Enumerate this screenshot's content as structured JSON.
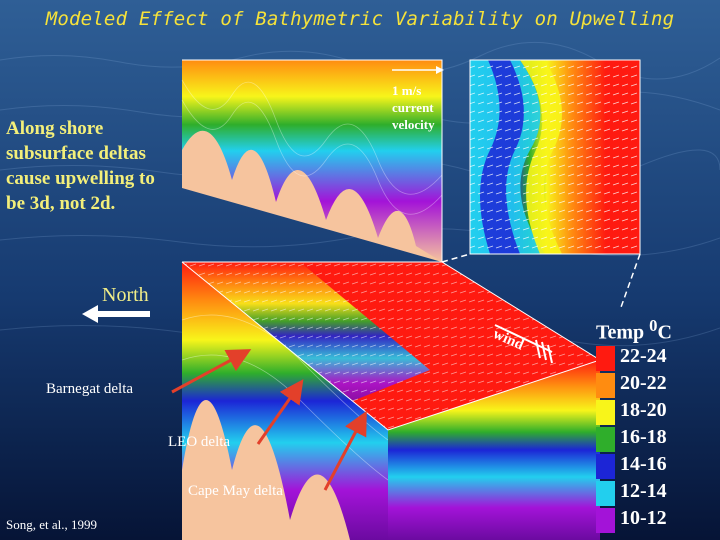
{
  "title": "Modeled Effect of Bathymetric Variability on Upwelling",
  "statement": "Along shore subsurface deltas cause upwelling to be 3d, not 2d.",
  "current_scale": {
    "label": "1 m/s current velocity"
  },
  "north_label": "North",
  "wind_label": "wind",
  "deltas": [
    "Barnegat delta",
    "LEO delta",
    "Cape May delta"
  ],
  "citation": "Song, et al., 1999",
  "legend": {
    "title": "Temp °C",
    "unit_base": "Temp ",
    "unit_sup": "0",
    "unit_tail": "C",
    "items": [
      {
        "label": "22-24",
        "color": "#ff1a10"
      },
      {
        "label": "20-22",
        "color": "#ff8c10"
      },
      {
        "label": "18-20",
        "color": "#f8f51a"
      },
      {
        "label": "16-18",
        "color": "#2fae2b"
      },
      {
        "label": "14-16",
        "color": "#1c25d6"
      },
      {
        "label": "12-14",
        "color": "#22cfee"
      },
      {
        "label": "10-12",
        "color": "#a313d8"
      }
    ]
  },
  "colors": {
    "title": "#f6e23a",
    "statement": "#f3ef7a",
    "north": "#f1ee88",
    "ocean_dark": "#06163a",
    "ocean_light": "#2f5f96",
    "bottom": "#f6c49e",
    "arrow": "#e3402a"
  },
  "icons": [
    "north-arrow-icon",
    "wind-arrow-icon",
    "current-scale-arrow-icon"
  ]
}
